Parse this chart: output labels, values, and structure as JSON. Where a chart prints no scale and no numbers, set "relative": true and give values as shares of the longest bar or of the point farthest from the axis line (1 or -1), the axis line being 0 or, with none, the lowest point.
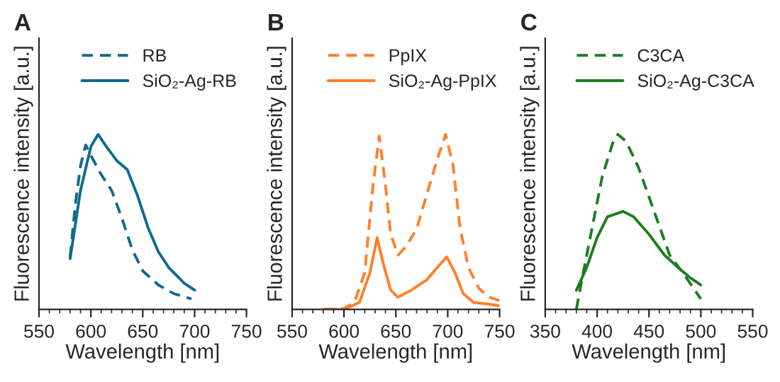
{
  "chart_data": [
    {
      "type": "line",
      "title": "A",
      "xlabel": "Wavelength [nm]",
      "ylabel": "Fluorescence intensity [a.u.]",
      "relative": true,
      "legend": "top",
      "grid": false,
      "xlim": [
        550,
        750
      ],
      "xticks": [
        550,
        {
          "value": 560,
          "label": null
        },
        {
          "value": 570,
          "label": null
        },
        {
          "value": 580,
          "label": null
        },
        {
          "value": 590,
          "label": null
        },
        600,
        {
          "value": 610,
          "label": null
        },
        {
          "value": 620,
          "label": null
        },
        {
          "value": 630,
          "label": null
        },
        {
          "value": 640,
          "label": null
        },
        650,
        {
          "value": 660,
          "label": null
        },
        {
          "value": 670,
          "label": null
        },
        {
          "value": 680,
          "label": null
        },
        {
          "value": 690,
          "label": null
        },
        700,
        {
          "value": 710,
          "label": null
        },
        {
          "value": 720,
          "label": null
        },
        {
          "value": 730,
          "label": null
        },
        {
          "value": 740,
          "label": null
        },
        750
      ],
      "series": [
        {
          "name": "RB",
          "color": "#106a8e",
          "line_style": "dashed",
          "x": [
            580,
            585,
            590,
            595,
            600,
            610,
            620,
            630,
            640,
            650,
            665,
            680,
            697
          ],
          "values": [
            0.3,
            0.6,
            0.82,
            0.94,
            0.88,
            0.77,
            0.68,
            0.52,
            0.34,
            0.22,
            0.14,
            0.09,
            0.06
          ]
        },
        {
          "name": "SiO₂-Ag-RB",
          "color": "#106a8e",
          "line_style": "solid",
          "x": [
            580,
            590,
            600,
            607,
            615,
            625,
            635,
            645,
            655,
            665,
            675,
            690,
            700
          ],
          "values": [
            0.29,
            0.68,
            0.93,
            1.0,
            0.93,
            0.85,
            0.8,
            0.65,
            0.47,
            0.33,
            0.24,
            0.15,
            0.11
          ]
        }
      ]
    },
    {
      "type": "line",
      "title": "B",
      "xlabel": "Wavelength [nm]",
      "ylabel": "Fluorescence intensity [a.u.]",
      "relative": true,
      "legend": "top",
      "grid": false,
      "xlim": [
        550,
        750
      ],
      "xticks": [
        550,
        {
          "value": 560,
          "label": null
        },
        {
          "value": 570,
          "label": null
        },
        {
          "value": 580,
          "label": null
        },
        {
          "value": 590,
          "label": null
        },
        600,
        {
          "value": 610,
          "label": null
        },
        {
          "value": 620,
          "label": null
        },
        {
          "value": 630,
          "label": null
        },
        {
          "value": 640,
          "label": null
        },
        650,
        {
          "value": 660,
          "label": null
        },
        {
          "value": 670,
          "label": null
        },
        {
          "value": 680,
          "label": null
        },
        {
          "value": 690,
          "label": null
        },
        700,
        {
          "value": 710,
          "label": null
        },
        {
          "value": 720,
          "label": null
        },
        {
          "value": 730,
          "label": null
        },
        {
          "value": 740,
          "label": null
        },
        750
      ],
      "series": [
        {
          "name": "PpIX",
          "color": "#ff7f2a",
          "line_style": "dashed",
          "x": [
            580,
            600,
            610,
            620,
            628,
            634,
            640,
            645,
            652,
            660,
            670,
            680,
            690,
            698,
            705,
            712,
            720,
            730,
            740,
            750
          ],
          "values": [
            0,
            0.005,
            0.04,
            0.21,
            0.71,
            0.99,
            0.71,
            0.43,
            0.31,
            0.36,
            0.46,
            0.66,
            0.86,
            1.0,
            0.83,
            0.46,
            0.24,
            0.12,
            0.07,
            0.05
          ]
        },
        {
          "name": "SiO₂-Ag-PpIX",
          "color": "#ff7f2a",
          "line_style": "solid",
          "x": [
            580,
            600,
            615,
            625,
            632,
            638,
            645,
            652,
            665,
            680,
            690,
            699,
            707,
            715,
            725,
            740,
            750
          ],
          "values": [
            0,
            0,
            0.04,
            0.21,
            0.41,
            0.26,
            0.11,
            0.07,
            0.11,
            0.17,
            0.24,
            0.3,
            0.21,
            0.09,
            0.04,
            0.03,
            0.02
          ]
        }
      ]
    },
    {
      "type": "line",
      "title": "C",
      "xlabel": "Wavelength [nm]",
      "ylabel": "Fluorescence intensity [a.u.]",
      "relative": true,
      "legend": "top",
      "grid": false,
      "xlim": [
        350,
        550
      ],
      "xticks": [
        350,
        {
          "value": 360,
          "label": null
        },
        {
          "value": 370,
          "label": null
        },
        {
          "value": 380,
          "label": null
        },
        {
          "value": 390,
          "label": null
        },
        400,
        {
          "value": 410,
          "label": null
        },
        {
          "value": 420,
          "label": null
        },
        {
          "value": 430,
          "label": null
        },
        {
          "value": 440,
          "label": null
        },
        450,
        {
          "value": 460,
          "label": null
        },
        {
          "value": 470,
          "label": null
        },
        {
          "value": 480,
          "label": null
        },
        {
          "value": 490,
          "label": null
        },
        500,
        {
          "value": 510,
          "label": null
        },
        {
          "value": 520,
          "label": null
        },
        {
          "value": 530,
          "label": null
        },
        {
          "value": 540,
          "label": null
        },
        550
      ],
      "series": [
        {
          "name": "C3CA",
          "color": "#1d7d1d",
          "line_style": "dashed",
          "x": [
            380,
            385,
            395,
            405,
            415,
            420,
            428,
            440,
            455,
            470,
            485,
            500
          ],
          "values": [
            0,
            0.16,
            0.46,
            0.76,
            0.95,
            1.0,
            0.96,
            0.81,
            0.56,
            0.31,
            0.19,
            0.06
          ]
        },
        {
          "name": "SiO₂-Ag-C3CA",
          "color": "#1d7d1d",
          "line_style": "solid",
          "x": [
            380,
            390,
            400,
            410,
            420,
            425,
            435,
            450,
            465,
            480,
            490,
            500
          ],
          "values": [
            0.11,
            0.24,
            0.41,
            0.53,
            0.55,
            0.56,
            0.53,
            0.43,
            0.31,
            0.23,
            0.18,
            0.14
          ]
        }
      ]
    }
  ]
}
